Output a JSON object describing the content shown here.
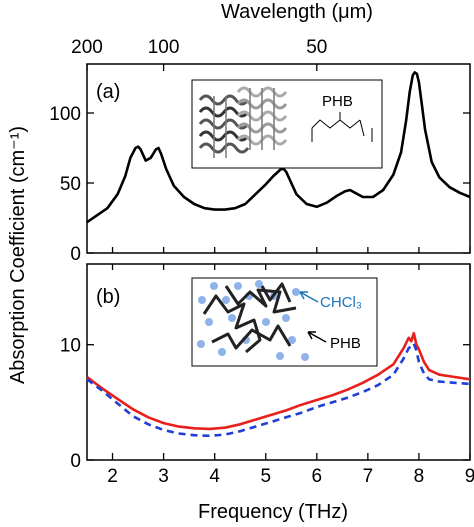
{
  "chart_data": {
    "type": "line",
    "title": "",
    "xlabel": "Frequency (THz)",
    "ylabel": "Absorption Coefficient (cm⁻¹)",
    "top_axis": {
      "label": "Wavelength (μm)",
      "ticks": [
        {
          "wavelength": 200,
          "frequency": 1.5,
          "label": "200"
        },
        {
          "wavelength": 100,
          "frequency": 3.0,
          "label": "100"
        },
        {
          "wavelength": 50,
          "frequency": 6.0,
          "label": "50"
        }
      ]
    },
    "xlim": [
      1.5,
      9
    ],
    "x_ticks": [
      {
        "v": 2,
        "label": "2"
      },
      {
        "v": 3,
        "label": "3"
      },
      {
        "v": 4,
        "label": "4"
      },
      {
        "v": 5,
        "label": "5"
      },
      {
        "v": 6,
        "label": "6"
      },
      {
        "v": 7,
        "label": "7"
      },
      {
        "v": 8,
        "label": "8"
      },
      {
        "v": 9,
        "label": "9"
      }
    ],
    "panels": [
      {
        "id": "a",
        "tag": "(a)",
        "ylim": [
          0,
          135
        ],
        "y_ticks": [
          {
            "v": 0,
            "label": "0"
          },
          {
            "v": 50,
            "label": "50"
          },
          {
            "v": 100,
            "label": "100"
          }
        ],
        "inset_label": "PHB",
        "series": [
          {
            "color": "#000000",
            "dash": "solid",
            "x": [
              1.5,
              1.7,
              1.9,
              2.1,
              2.25,
              2.35,
              2.45,
              2.5,
              2.55,
              2.65,
              2.75,
              2.85,
              2.9,
              2.95,
              3.05,
              3.2,
              3.4,
              3.6,
              3.8,
              4.0,
              4.2,
              4.4,
              4.6,
              4.8,
              5.0,
              5.15,
              5.3,
              5.35,
              5.4,
              5.5,
              5.6,
              5.8,
              6.0,
              6.2,
              6.4,
              6.55,
              6.65,
              6.75,
              6.9,
              7.1,
              7.3,
              7.5,
              7.65,
              7.75,
              7.82,
              7.88,
              7.92,
              7.96,
              8.0,
              8.05,
              8.12,
              8.25,
              8.4,
              8.6,
              8.8,
              9.0
            ],
            "y": [
              22,
              27,
              32,
              42,
              55,
              68,
              75,
              76,
              74,
              66,
              68,
              74,
              75,
              71,
              60,
              48,
              40,
              35,
              32,
              31,
              31,
              32,
              35,
              42,
              49,
              55,
              60,
              60,
              58,
              50,
              42,
              35,
              33,
              36,
              41,
              44,
              45,
              43,
              40,
              40,
              45,
              56,
              72,
              95,
              115,
              127,
              129,
              128,
              122,
              108,
              88,
              65,
              54,
              47,
              43,
              40
            ]
          }
        ]
      },
      {
        "id": "b",
        "tag": "(b)",
        "ylim": [
          0,
          17
        ],
        "y_ticks": [
          {
            "v": 0,
            "label": "0"
          },
          {
            "v": 10,
            "label": "10"
          }
        ],
        "inset_labels": [
          {
            "text": "CHCl₃",
            "color": "#1a75b8"
          },
          {
            "text": "PHB",
            "color": "#000000"
          }
        ],
        "series": [
          {
            "color": "#e8201c",
            "dash": "solid",
            "x": [
              1.5,
              1.8,
              2.1,
              2.4,
              2.7,
              3.0,
              3.3,
              3.6,
              3.9,
              4.2,
              4.5,
              4.8,
              5.1,
              5.4,
              5.7,
              6.0,
              6.3,
              6.6,
              6.9,
              7.2,
              7.5,
              7.7,
              7.8,
              7.85,
              7.9,
              7.95,
              8.0,
              8.1,
              8.2,
              8.4,
              8.7,
              9.0
            ],
            "y": [
              7.2,
              6.2,
              5.3,
              4.4,
              3.7,
              3.2,
              2.9,
              2.75,
              2.7,
              2.8,
              3.1,
              3.5,
              3.9,
              4.3,
              4.8,
              5.2,
              5.6,
              6.1,
              6.7,
              7.4,
              8.3,
              9.7,
              10.6,
              10.3,
              11.0,
              10.0,
              9.6,
              8.5,
              7.8,
              7.4,
              7.2,
              7.0
            ]
          },
          {
            "color": "#1f3fd6",
            "dash": "dashed",
            "x": [
              1.5,
              1.8,
              2.1,
              2.4,
              2.7,
              3.0,
              3.3,
              3.6,
              3.9,
              4.2,
              4.5,
              4.8,
              5.1,
              5.4,
              5.7,
              6.0,
              6.3,
              6.6,
              6.9,
              7.2,
              7.5,
              7.7,
              7.8,
              7.85,
              7.9,
              7.95,
              8.0,
              8.1,
              8.2,
              8.4,
              8.7,
              9.0
            ],
            "y": [
              7.0,
              6.0,
              4.9,
              3.8,
              3.1,
              2.6,
              2.3,
              2.15,
              2.1,
              2.2,
              2.5,
              2.9,
              3.3,
              3.7,
              4.1,
              4.6,
              5.0,
              5.4,
              5.9,
              6.5,
              7.4,
              8.8,
              9.7,
              9.9,
              10.1,
              9.5,
              8.5,
              7.5,
              7.0,
              6.8,
              6.7,
              6.6
            ]
          }
        ]
      }
    ]
  }
}
